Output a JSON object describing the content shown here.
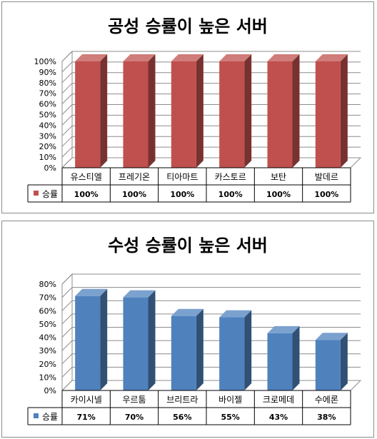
{
  "chart_data": [
    {
      "type": "bar",
      "title": "공성 승률이 높은 서버",
      "categories": [
        "유스티엘",
        "프레기온",
        "티아마트",
        "카스토르",
        "보탄",
        "발데르"
      ],
      "series": [
        {
          "name": "승률",
          "values": [
            100,
            100,
            100,
            100,
            100,
            100
          ]
        }
      ],
      "value_labels": [
        "100%",
        "100%",
        "100%",
        "100%",
        "100%",
        "100%"
      ],
      "yticks": [
        "0%",
        "10%",
        "20%",
        "30%",
        "40%",
        "50%",
        "60%",
        "70%",
        "80%",
        "90%",
        "100%"
      ],
      "ylim": [
        0,
        100
      ],
      "color": "#c0504d",
      "grid": true,
      "legend": "data-table"
    },
    {
      "type": "bar",
      "title": "수성 승률이 높은 서버",
      "categories": [
        "카이시넬",
        "우르툼",
        "브리트라",
        "바이젤",
        "크로메데",
        "수에론"
      ],
      "series": [
        {
          "name": "승률",
          "values": [
            71,
            70,
            56,
            55,
            43,
            38
          ]
        }
      ],
      "value_labels": [
        "71%",
        "70%",
        "56%",
        "55%",
        "43%",
        "38%"
      ],
      "yticks": [
        "0%",
        "10%",
        "20%",
        "30%",
        "40%",
        "50%",
        "60%",
        "70%",
        "80%"
      ],
      "ylim": [
        0,
        80
      ],
      "color": "#4f81bd",
      "grid": true,
      "legend": "data-table"
    }
  ]
}
